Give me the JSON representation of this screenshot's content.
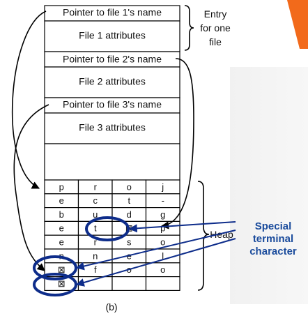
{
  "entries": [
    {
      "pointer": "Pointer to file 1's name",
      "attributes": "File 1 attributes"
    },
    {
      "pointer": "Pointer to file 2's name",
      "attributes": "File 2 attributes"
    },
    {
      "pointer": "Pointer to file 3's name",
      "attributes": "File 3 attributes"
    }
  ],
  "brace_entry": [
    "Entry",
    "for one",
    "file"
  ],
  "heap_label": "Heap",
  "callout_lines": [
    "Special",
    "terminal",
    "character"
  ],
  "caption": "(b)",
  "heap_rows": [
    [
      "p",
      "r",
      "o",
      "j"
    ],
    [
      "e",
      "c",
      "t",
      "-"
    ],
    [
      "b",
      "u",
      "d",
      "g"
    ],
    [
      "e",
      "t",
      "⊠",
      "p"
    ],
    [
      "e",
      "r",
      "s",
      "o"
    ],
    [
      "n",
      "n",
      "e",
      "l"
    ],
    [
      "⊠",
      "f",
      "o",
      "o"
    ],
    [
      "⊠",
      "",
      "",
      ""
    ]
  ],
  "colors": {
    "callout": "#1a4b9c",
    "oval": "#0d2c8a",
    "accent": "#f26a1b"
  }
}
